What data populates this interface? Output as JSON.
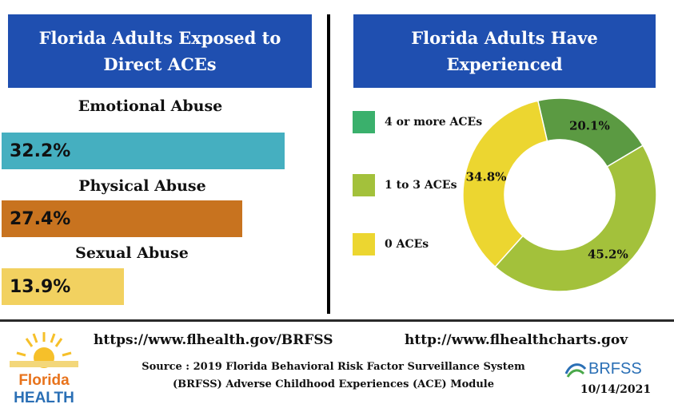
{
  "left_panel": {
    "title_line1": "Florida Adults Exposed to",
    "title_line2": "Direct ACEs"
  },
  "right_panel": {
    "title_line1": "Florida Adults  Have",
    "title_line2": "Experienced"
  },
  "chart_data": [
    {
      "type": "bar",
      "orientation": "horizontal",
      "title": "Florida Adults Exposed to Direct ACEs",
      "categories": [
        "Emotional Abuse",
        "Physical Abuse",
        "Sexual Abuse"
      ],
      "values": [
        32.2,
        27.4,
        13.9
      ],
      "labels": [
        "32.2%",
        "27.4%",
        "13.9%"
      ],
      "colors": [
        "#45afc0",
        "#c8731f",
        "#f2d160"
      ],
      "unit": "%"
    },
    {
      "type": "pie",
      "variant": "donut",
      "title": "Florida Adults  Have Experienced",
      "categories": [
        "4 or  more ACEs",
        "1 to 3 ACEs",
        "0 ACEs"
      ],
      "values": [
        20.1,
        45.2,
        34.8
      ],
      "labels": [
        "20.1%",
        "45.2%",
        "34.8%"
      ],
      "colors": [
        "#5b9a42",
        "#a3c13b",
        "#ecd630"
      ],
      "legend_colors": [
        "#3ab06c",
        "#a3c13b",
        "#ecd630"
      ],
      "legend_position": "left"
    }
  ],
  "footer": {
    "url_left": "https://www.flhealth.gov/BRFSS",
    "url_right": "http://www.flhealthcharts.gov",
    "source_line1": "Source : 2019 Florida  Behavioral Risk Factor Surveillance System",
    "source_line2": "(BRFSS) Adverse Childhood Experiences (ACE) Module",
    "date": "10/14/2021",
    "florida_logo_text1": "Florida",
    "florida_logo_text2": "HEALTH",
    "brfss_logo_text": "BRFSS"
  }
}
